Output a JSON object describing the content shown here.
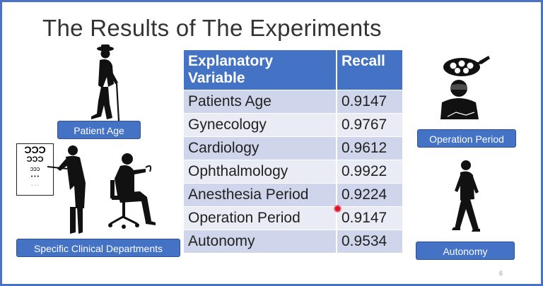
{
  "slide": {
    "title": "The Results of The Experiments",
    "page_number": "6"
  },
  "table": {
    "headers": [
      "Explanatory Variable",
      "Recall"
    ],
    "rows": [
      {
        "variable": "Patients Age",
        "recall": "0.9147"
      },
      {
        "variable": "Gynecology",
        "recall": "0.9767"
      },
      {
        "variable": "Cardiology",
        "recall": "0.9612"
      },
      {
        "variable": "Ophthalmology",
        "recall": "0.9922"
      },
      {
        "variable": "Anesthesia Period",
        "recall": "0.9224"
      },
      {
        "variable": "Operation Period",
        "recall": "0.9147"
      },
      {
        "variable": "Autonomy",
        "recall": "0.9534"
      }
    ]
  },
  "labels": {
    "patient_age": "Patient Age",
    "specific_departments": "Specific Clinical Departments",
    "operation_period": "Operation Period",
    "autonomy": "Autonomy"
  },
  "eye_chart": {
    "rows": [
      "ƆƆƆ",
      "ƆƆƆ",
      "ɔɔɔ",
      "• • •",
      "· · ·"
    ]
  },
  "icons": [
    "elderly-person-with-cane-icon",
    "doctor-at-eye-chart-icon",
    "doctor-with-stethoscope-icon",
    "surgeon-under-surgical-lamp-icon",
    "walking-person-icon",
    "pointer-cursor-icon"
  ],
  "colors": {
    "frame": "#4a73c4",
    "header": "#4472c4",
    "row_dark": "#cfd5ea",
    "row_light": "#e9ebf5",
    "label_bg": "#4472c4"
  }
}
